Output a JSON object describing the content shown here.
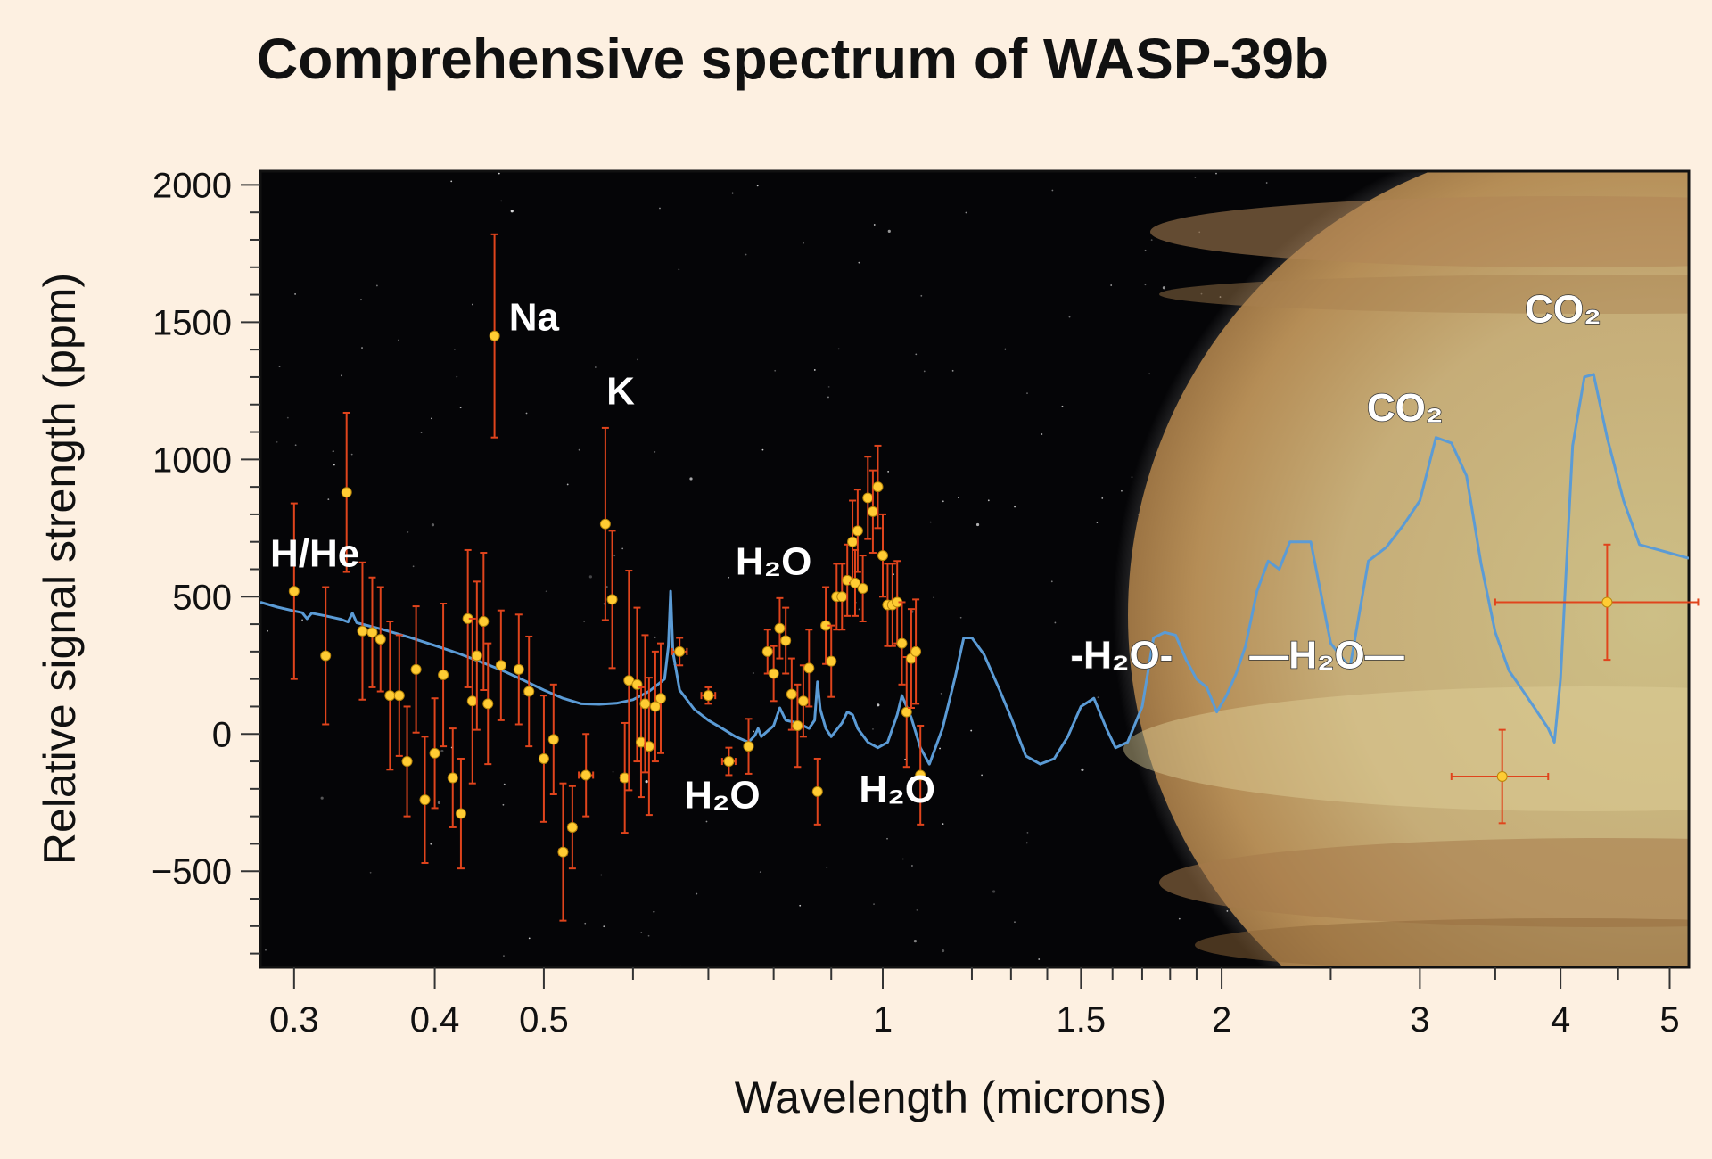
{
  "chart_data": {
    "type": "scatter",
    "title": "Comprehensive spectrum of WASP-39b",
    "xlabel": "Wavelength (microns)",
    "ylabel": "Relative signal strength (ppm)",
    "x_scale": "log",
    "xlim": [
      0.28,
      5.2
    ],
    "ylim": [
      -850,
      2050
    ],
    "x_ticks": [
      {
        "value": 0.3,
        "label": "0.3"
      },
      {
        "value": 0.4,
        "label": "0.4"
      },
      {
        "value": 0.5,
        "label": "0.5"
      },
      {
        "value": 1,
        "label": "1"
      },
      {
        "value": 1.5,
        "label": "1.5"
      },
      {
        "value": 2,
        "label": "2"
      },
      {
        "value": 3,
        "label": "3"
      },
      {
        "value": 4,
        "label": "4"
      },
      {
        "value": 5,
        "label": "5"
      }
    ],
    "x_minor_ticks": [
      0.6,
      0.7,
      0.8,
      0.9,
      1.2,
      1.3,
      1.4,
      1.6,
      1.7,
      1.8,
      1.9,
      2.5,
      3.5,
      4.5
    ],
    "y_ticks": [
      {
        "value": 2000,
        "label": "2000"
      },
      {
        "value": 1500,
        "label": "1500"
      },
      {
        "value": 1000,
        "label": "1000"
      },
      {
        "value": 500,
        "label": "500"
      },
      {
        "value": 0,
        "label": "0"
      },
      {
        "value": -500,
        "label": "−500"
      }
    ],
    "y_minor_step": 100,
    "grid": false,
    "model_series": {
      "color": "#5b9bd5",
      "points": [
        [
          0.28,
          480
        ],
        [
          0.29,
          462
        ],
        [
          0.3,
          448
        ],
        [
          0.305,
          442
        ],
        [
          0.308,
          420
        ],
        [
          0.311,
          440
        ],
        [
          0.32,
          430
        ],
        [
          0.33,
          418
        ],
        [
          0.335,
          408
        ],
        [
          0.338,
          440
        ],
        [
          0.341,
          405
        ],
        [
          0.36,
          380
        ],
        [
          0.38,
          352
        ],
        [
          0.4,
          322
        ],
        [
          0.42,
          293
        ],
        [
          0.44,
          262
        ],
        [
          0.46,
          230
        ],
        [
          0.48,
          195
        ],
        [
          0.5,
          160
        ],
        [
          0.52,
          130
        ],
        [
          0.54,
          110
        ],
        [
          0.56,
          108
        ],
        [
          0.58,
          112
        ],
        [
          0.6,
          125
        ],
        [
          0.62,
          155
        ],
        [
          0.64,
          200
        ],
        [
          0.645,
          320
        ],
        [
          0.648,
          520
        ],
        [
          0.651,
          300
        ],
        [
          0.66,
          160
        ],
        [
          0.68,
          90
        ],
        [
          0.7,
          50
        ],
        [
          0.72,
          20
        ],
        [
          0.74,
          -10
        ],
        [
          0.76,
          -30
        ],
        [
          0.77,
          -5
        ],
        [
          0.775,
          20
        ],
        [
          0.78,
          -10
        ],
        [
          0.8,
          30
        ],
        [
          0.81,
          95
        ],
        [
          0.82,
          50
        ],
        [
          0.84,
          40
        ],
        [
          0.86,
          20
        ],
        [
          0.87,
          50
        ],
        [
          0.875,
          190
        ],
        [
          0.88,
          90
        ],
        [
          0.89,
          20
        ],
        [
          0.9,
          -10
        ],
        [
          0.92,
          40
        ],
        [
          0.93,
          80
        ],
        [
          0.94,
          70
        ],
        [
          0.95,
          20
        ],
        [
          0.97,
          -30
        ],
        [
          0.99,
          -50
        ],
        [
          1.01,
          -30
        ],
        [
          1.03,
          70
        ],
        [
          1.04,
          140
        ],
        [
          1.06,
          60
        ],
        [
          1.08,
          -50
        ],
        [
          1.1,
          -110
        ],
        [
          1.13,
          20
        ],
        [
          1.16,
          210
        ],
        [
          1.18,
          350
        ],
        [
          1.2,
          350
        ],
        [
          1.23,
          290
        ],
        [
          1.27,
          160
        ],
        [
          1.3,
          60
        ],
        [
          1.34,
          -80
        ],
        [
          1.38,
          -110
        ],
        [
          1.42,
          -90
        ],
        [
          1.46,
          -10
        ],
        [
          1.5,
          100
        ],
        [
          1.54,
          130
        ],
        [
          1.58,
          20
        ],
        [
          1.61,
          -50
        ],
        [
          1.65,
          -30
        ],
        [
          1.7,
          100
        ],
        [
          1.74,
          350
        ],
        [
          1.78,
          370
        ],
        [
          1.82,
          360
        ],
        [
          1.86,
          270
        ],
        [
          1.9,
          200
        ],
        [
          1.94,
          170
        ],
        [
          1.98,
          80
        ],
        [
          2.02,
          140
        ],
        [
          2.06,
          220
        ],
        [
          2.1,
          320
        ],
        [
          2.15,
          520
        ],
        [
          2.2,
          630
        ],
        [
          2.25,
          600
        ],
        [
          2.3,
          700
        ],
        [
          2.4,
          700
        ],
        [
          2.5,
          330
        ],
        [
          2.6,
          240
        ],
        [
          2.7,
          630
        ],
        [
          2.8,
          680
        ],
        [
          2.9,
          760
        ],
        [
          3.0,
          850
        ],
        [
          3.1,
          1080
        ],
        [
          3.2,
          1060
        ],
        [
          3.3,
          940
        ],
        [
          3.4,
          620
        ],
        [
          3.5,
          370
        ],
        [
          3.6,
          230
        ],
        [
          3.7,
          160
        ],
        [
          3.8,
          90
        ],
        [
          3.9,
          20
        ],
        [
          3.95,
          -30
        ],
        [
          4.0,
          200
        ],
        [
          4.1,
          1050
        ],
        [
          4.2,
          1300
        ],
        [
          4.28,
          1310
        ],
        [
          4.4,
          1080
        ],
        [
          4.55,
          850
        ],
        [
          4.7,
          690
        ],
        [
          5.2,
          640
        ]
      ]
    },
    "series": [
      {
        "name": "",
        "color": "#ffcc33",
        "errorbar_color": "#e0441c",
        "points": [
          {
            "x": 0.3,
            "y": 520,
            "yerr": 320,
            "xerr": 0
          },
          {
            "x": 0.32,
            "y": 285,
            "yerr": 250,
            "xerr": 0
          },
          {
            "x": 0.334,
            "y": 880,
            "yerr": 290,
            "xerr": 0
          },
          {
            "x": 0.345,
            "y": 375,
            "yerr": 250,
            "xerr": 0
          },
          {
            "x": 0.352,
            "y": 370,
            "yerr": 200,
            "xerr": 0
          },
          {
            "x": 0.358,
            "y": 345,
            "yerr": 190,
            "xerr": 0
          },
          {
            "x": 0.365,
            "y": 140,
            "yerr": 270,
            "xerr": 0
          },
          {
            "x": 0.372,
            "y": 140,
            "yerr": 220,
            "xerr": 0
          },
          {
            "x": 0.378,
            "y": -100,
            "yerr": 200,
            "xerr": 0
          },
          {
            "x": 0.385,
            "y": 235,
            "yerr": 230,
            "xerr": 0
          },
          {
            "x": 0.392,
            "y": -240,
            "yerr": 230,
            "xerr": 0
          },
          {
            "x": 0.4,
            "y": -70,
            "yerr": 200,
            "xerr": 0
          },
          {
            "x": 0.407,
            "y": 215,
            "yerr": 260,
            "xerr": 0
          },
          {
            "x": 0.415,
            "y": -160,
            "yerr": 180,
            "xerr": 0
          },
          {
            "x": 0.422,
            "y": -290,
            "yerr": 200,
            "xerr": 0
          },
          {
            "x": 0.428,
            "y": 420,
            "yerr": 250,
            "xerr": 0
          },
          {
            "x": 0.432,
            "y": 120,
            "yerr": 300,
            "xerr": 0
          },
          {
            "x": 0.436,
            "y": 285,
            "yerr": 270,
            "xerr": 0
          },
          {
            "x": 0.442,
            "y": 410,
            "yerr": 250,
            "xerr": 0
          },
          {
            "x": 0.446,
            "y": 110,
            "yerr": 220,
            "xerr": 0
          },
          {
            "x": 0.452,
            "y": 1450,
            "yerr": 370,
            "xerr": 0
          },
          {
            "x": 0.458,
            "y": 250,
            "yerr": 200,
            "xerr": 0
          },
          {
            "x": 0.475,
            "y": 235,
            "yerr": 200,
            "xerr": 0
          },
          {
            "x": 0.485,
            "y": 155,
            "yerr": 200,
            "xerr": 0
          },
          {
            "x": 0.5,
            "y": -90,
            "yerr": 230,
            "xerr": 0
          },
          {
            "x": 0.51,
            "y": -20,
            "yerr": 200,
            "xerr": 0
          },
          {
            "x": 0.52,
            "y": -430,
            "yerr": 250,
            "xerr": 0.004
          },
          {
            "x": 0.53,
            "y": -340,
            "yerr": 150,
            "xerr": 0.004
          },
          {
            "x": 0.545,
            "y": -150,
            "yerr": 150,
            "xerr": 0.008
          },
          {
            "x": 0.567,
            "y": 765,
            "yerr": 350,
            "xerr": 0
          },
          {
            "x": 0.575,
            "y": 490,
            "yerr": 250,
            "xerr": 0
          },
          {
            "x": 0.59,
            "y": -160,
            "yerr": 200,
            "xerr": 0.005
          },
          {
            "x": 0.595,
            "y": 195,
            "yerr": 400,
            "xerr": 0
          },
          {
            "x": 0.605,
            "y": 180,
            "yerr": 280,
            "xerr": 0
          },
          {
            "x": 0.61,
            "y": -30,
            "yerr": 200,
            "xerr": 0.005
          },
          {
            "x": 0.62,
            "y": -45,
            "yerr": 250,
            "xerr": 0
          },
          {
            "x": 0.615,
            "y": 110,
            "yerr": 250,
            "xerr": 0
          },
          {
            "x": 0.628,
            "y": 100,
            "yerr": 200,
            "xerr": 0
          },
          {
            "x": 0.635,
            "y": 130,
            "yerr": 200,
            "xerr": 0
          },
          {
            "x": 0.66,
            "y": 300,
            "yerr": 50,
            "xerr": 0.01
          },
          {
            "x": 0.7,
            "y": 140,
            "yerr": 30,
            "xerr": 0.01
          },
          {
            "x": 0.73,
            "y": -100,
            "yerr": 50,
            "xerr": 0.01
          },
          {
            "x": 0.76,
            "y": -45,
            "yerr": 100,
            "xerr": 0
          },
          {
            "x": 0.79,
            "y": 300,
            "yerr": 80,
            "xerr": 0
          },
          {
            "x": 0.8,
            "y": 220,
            "yerr": 100,
            "xerr": 0
          },
          {
            "x": 0.81,
            "y": 385,
            "yerr": 110,
            "xerr": 0
          },
          {
            "x": 0.82,
            "y": 340,
            "yerr": 120,
            "xerr": 0
          },
          {
            "x": 0.83,
            "y": 145,
            "yerr": 130,
            "xerr": 0
          },
          {
            "x": 0.84,
            "y": 30,
            "yerr": 150,
            "xerr": 0
          },
          {
            "x": 0.85,
            "y": 120,
            "yerr": 130,
            "xerr": 0
          },
          {
            "x": 0.86,
            "y": 240,
            "yerr": 140,
            "xerr": 0
          },
          {
            "x": 0.875,
            "y": -210,
            "yerr": 120,
            "xerr": 0
          },
          {
            "x": 0.89,
            "y": 395,
            "yerr": 140,
            "xerr": 0
          },
          {
            "x": 0.9,
            "y": 265,
            "yerr": 130,
            "xerr": 0
          },
          {
            "x": 0.91,
            "y": 500,
            "yerr": 120,
            "xerr": 0
          },
          {
            "x": 0.92,
            "y": 500,
            "yerr": 120,
            "xerr": 0
          },
          {
            "x": 0.93,
            "y": 560,
            "yerr": 130,
            "xerr": 0
          },
          {
            "x": 0.94,
            "y": 700,
            "yerr": 150,
            "xerr": 0
          },
          {
            "x": 0.945,
            "y": 550,
            "yerr": 120,
            "xerr": 0
          },
          {
            "x": 0.95,
            "y": 740,
            "yerr": 150,
            "xerr": 0
          },
          {
            "x": 0.96,
            "y": 530,
            "yerr": 120,
            "xerr": 0
          },
          {
            "x": 0.97,
            "y": 860,
            "yerr": 150,
            "xerr": 0
          },
          {
            "x": 0.98,
            "y": 810,
            "yerr": 150,
            "xerr": 0
          },
          {
            "x": 0.99,
            "y": 900,
            "yerr": 150,
            "xerr": 0
          },
          {
            "x": 1.0,
            "y": 650,
            "yerr": 150,
            "xerr": 0
          },
          {
            "x": 1.01,
            "y": 470,
            "yerr": 150,
            "xerr": 0
          },
          {
            "x": 1.02,
            "y": 470,
            "yerr": 150,
            "xerr": 0
          },
          {
            "x": 1.03,
            "y": 480,
            "yerr": 150,
            "xerr": 0
          },
          {
            "x": 1.04,
            "y": 330,
            "yerr": 150,
            "xerr": 0
          },
          {
            "x": 1.05,
            "y": 80,
            "yerr": 200,
            "xerr": 0
          },
          {
            "x": 1.06,
            "y": 275,
            "yerr": 180,
            "xerr": 0
          },
          {
            "x": 1.07,
            "y": 300,
            "yerr": 190,
            "xerr": 0
          },
          {
            "x": 1.08,
            "y": -150,
            "yerr": 180,
            "xerr": 0
          },
          {
            "x": 3.55,
            "y": -155,
            "yerr": 170,
            "xerr": 0.35
          },
          {
            "x": 4.4,
            "y": 480,
            "yerr": 210,
            "xerr": 0.9
          }
        ]
      }
    ],
    "annotations": [
      {
        "text": "H/He",
        "x": 0.313,
        "y": 610
      },
      {
        "text": "Na",
        "x": 0.49,
        "y": 1470
      },
      {
        "text": "K",
        "x": 0.585,
        "y": 1200
      },
      {
        "text": "H₂O",
        "x": 0.8,
        "y": 580
      },
      {
        "text": "H₂O",
        "x": 0.72,
        "y": -270
      },
      {
        "text": "H₂O",
        "x": 1.03,
        "y": -250
      },
      {
        "text": "-H₂O-",
        "x": 1.63,
        "y": 240
      },
      {
        "text": "—H₂O—",
        "x": 2.48,
        "y": 240
      },
      {
        "text": "CO₂",
        "x": 2.91,
        "y": 1140
      },
      {
        "text": "CO₂",
        "x": 4.02,
        "y": 1500
      }
    ]
  }
}
